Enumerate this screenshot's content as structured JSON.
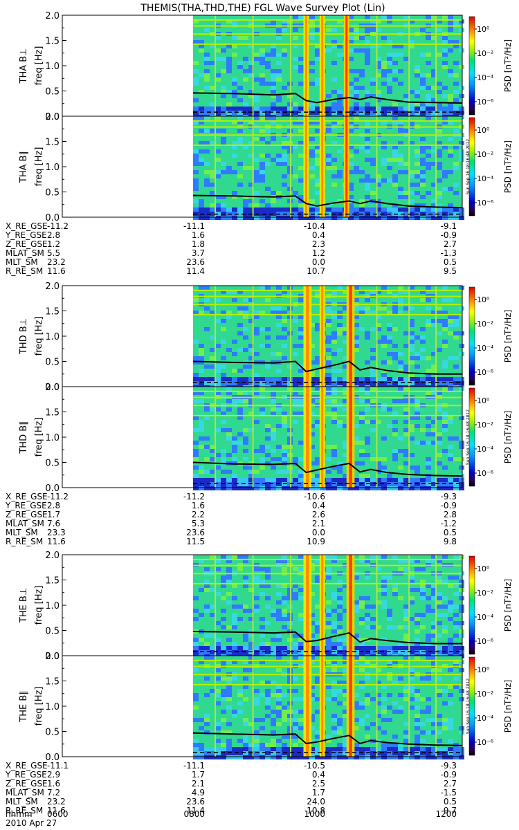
{
  "title": "THEMIS(THA,THD,THE) FGL Wave Survey Plot (Lin)",
  "colorbar": {
    "label": "PSD [nT²/Hz]",
    "ticks": [
      "10⁰",
      "10⁻²",
      "10⁻⁴",
      "10⁻⁶"
    ]
  },
  "stamp": "Sun Sep 16 18:16:48 2012",
  "footer": {
    "hhmm_label": "hhmm",
    "date": "2010 Apr 27",
    "times": [
      "0600",
      "0800",
      "1000",
      "1200"
    ]
  },
  "chart_data": [
    {
      "type": "heatmap",
      "name": "THA B⊥",
      "ylabel": "freq [Hz]",
      "ylim": [
        0,
        2.0
      ],
      "yticks": [
        "0.0",
        "0.5",
        "1.0",
        "1.5",
        "2.0"
      ],
      "x_start": "0600",
      "data_start": "0800",
      "x_end": "1200",
      "bands": [
        0.41,
        0.43,
        0.47,
        0.49,
        0.56,
        0.58
      ],
      "line": [
        [
          0.0,
          0.46
        ],
        [
          0.15,
          0.45
        ],
        [
          0.3,
          0.42
        ],
        [
          0.38,
          0.45
        ],
        [
          0.42,
          0.31
        ],
        [
          0.46,
          0.27
        ],
        [
          0.52,
          0.33
        ],
        [
          0.58,
          0.37
        ],
        [
          0.62,
          0.33
        ],
        [
          0.66,
          0.38
        ],
        [
          0.72,
          0.33
        ],
        [
          0.8,
          0.28
        ],
        [
          0.9,
          0.27
        ],
        [
          1.0,
          0.26
        ]
      ],
      "dash": 0.08
    },
    {
      "type": "heatmap",
      "name": "THA B∥",
      "ylabel": "freq [Hz]",
      "ylim": [
        0,
        2.0
      ],
      "yticks": [
        "0.0",
        "0.5",
        "1.0",
        "1.5",
        "2.0"
      ],
      "x_start": "0600",
      "data_start": "0800",
      "x_end": "1200",
      "bands": [
        0.41,
        0.43,
        0.47,
        0.49,
        0.56,
        0.58
      ],
      "line": [
        [
          0.0,
          0.43
        ],
        [
          0.15,
          0.42
        ],
        [
          0.3,
          0.4
        ],
        [
          0.38,
          0.42
        ],
        [
          0.42,
          0.27
        ],
        [
          0.46,
          0.22
        ],
        [
          0.52,
          0.28
        ],
        [
          0.58,
          0.32
        ],
        [
          0.62,
          0.27
        ],
        [
          0.66,
          0.32
        ],
        [
          0.72,
          0.27
        ],
        [
          0.8,
          0.22
        ],
        [
          0.9,
          0.2
        ],
        [
          1.0,
          0.19
        ]
      ],
      "dash": 0.06
    },
    {
      "type": "heatmap",
      "name": "THD B⊥",
      "ylabel": "freq [Hz]",
      "ylim": [
        0,
        2.0
      ],
      "yticks": [
        "0.0",
        "0.5",
        "1.0",
        "1.5",
        "2.0"
      ],
      "x_start": "0600",
      "data_start": "0800",
      "x_end": "1200",
      "bands": [
        0.41,
        0.44,
        0.47,
        0.49,
        0.57,
        0.6
      ],
      "line": [
        [
          0.0,
          0.5
        ],
        [
          0.15,
          0.48
        ],
        [
          0.3,
          0.47
        ],
        [
          0.38,
          0.5
        ],
        [
          0.42,
          0.3
        ],
        [
          0.46,
          0.35
        ],
        [
          0.52,
          0.42
        ],
        [
          0.58,
          0.5
        ],
        [
          0.62,
          0.33
        ],
        [
          0.66,
          0.38
        ],
        [
          0.72,
          0.32
        ],
        [
          0.8,
          0.27
        ],
        [
          0.9,
          0.25
        ],
        [
          1.0,
          0.25
        ]
      ],
      "dash": 0.08
    },
    {
      "type": "heatmap",
      "name": "THD B∥",
      "ylabel": "freq [Hz]",
      "ylim": [
        0,
        2.0
      ],
      "yticks": [
        "0.0",
        "0.5",
        "1.0",
        "1.5",
        "2.0"
      ],
      "x_start": "0600",
      "data_start": "0800",
      "x_end": "1200",
      "bands": [
        0.41,
        0.44,
        0.47,
        0.49,
        0.57,
        0.6
      ],
      "line": [
        [
          0.0,
          0.5
        ],
        [
          0.15,
          0.47
        ],
        [
          0.3,
          0.46
        ],
        [
          0.38,
          0.48
        ],
        [
          0.42,
          0.3
        ],
        [
          0.46,
          0.35
        ],
        [
          0.52,
          0.42
        ],
        [
          0.58,
          0.48
        ],
        [
          0.62,
          0.31
        ],
        [
          0.66,
          0.36
        ],
        [
          0.72,
          0.3
        ],
        [
          0.8,
          0.26
        ],
        [
          0.9,
          0.24
        ],
        [
          1.0,
          0.23
        ]
      ],
      "dash": 0.08
    },
    {
      "type": "heatmap",
      "name": "THE B⊥",
      "ylabel": "freq [Hz]",
      "ylim": [
        0,
        2.0
      ],
      "yticks": [
        "0.0",
        "0.5",
        "1.0",
        "1.5",
        "2.0"
      ],
      "x_start": "0600",
      "data_start": "0800",
      "x_end": "1200",
      "bands": [
        0.41,
        0.44,
        0.47,
        0.49,
        0.57,
        0.6
      ],
      "line": [
        [
          0.0,
          0.48
        ],
        [
          0.15,
          0.47
        ],
        [
          0.3,
          0.45
        ],
        [
          0.38,
          0.47
        ],
        [
          0.42,
          0.28
        ],
        [
          0.46,
          0.3
        ],
        [
          0.52,
          0.38
        ],
        [
          0.58,
          0.45
        ],
        [
          0.62,
          0.27
        ],
        [
          0.66,
          0.34
        ],
        [
          0.72,
          0.3
        ],
        [
          0.8,
          0.26
        ],
        [
          0.9,
          0.24
        ],
        [
          1.0,
          0.24
        ]
      ],
      "dash": 0.08
    },
    {
      "type": "heatmap",
      "name": "THE B∥",
      "ylabel": "freq [Hz]",
      "ylim": [
        0,
        2.0
      ],
      "yticks": [
        "0.0",
        "0.5",
        "1.0",
        "1.5",
        "2.0"
      ],
      "x_start": "0600",
      "data_start": "0800",
      "x_end": "1200",
      "bands": [
        0.41,
        0.44,
        0.47,
        0.49,
        0.57,
        0.6
      ],
      "line": [
        [
          0.0,
          0.47
        ],
        [
          0.15,
          0.45
        ],
        [
          0.3,
          0.43
        ],
        [
          0.38,
          0.45
        ],
        [
          0.42,
          0.26
        ],
        [
          0.46,
          0.29
        ],
        [
          0.52,
          0.36
        ],
        [
          0.58,
          0.42
        ],
        [
          0.62,
          0.26
        ],
        [
          0.66,
          0.32
        ],
        [
          0.72,
          0.28
        ],
        [
          0.8,
          0.25
        ],
        [
          0.9,
          0.23
        ],
        [
          1.0,
          0.22
        ]
      ],
      "dash": 0.08
    }
  ],
  "ephemeris": [
    {
      "rows": [
        {
          "label": "X_RE_GSE",
          "values": [
            "-11.2",
            "-11.1",
            "-10.4",
            "-9.1"
          ]
        },
        {
          "label": "Y_RE_GSE",
          "values": [
            "2.8",
            "1.6",
            "0.4",
            "-0.9"
          ]
        },
        {
          "label": "Z_RE_GSE",
          "values": [
            "1.2",
            "1.8",
            "2.3",
            "2.7"
          ]
        },
        {
          "label": "MLAT_SM",
          "values": [
            "5.5",
            "3.7",
            "1.2",
            "-1.3"
          ]
        },
        {
          "label": "MLT_SM",
          "values": [
            "23.2",
            "23.6",
            "0.0",
            "0.5"
          ]
        },
        {
          "label": "R_RE_SM",
          "values": [
            "11.6",
            "11.4",
            "10.7",
            "9.5"
          ]
        }
      ]
    },
    {
      "rows": [
        {
          "label": "X_RE_GSE",
          "values": [
            "-11.2",
            "-11.2",
            "-10.6",
            "-9.3"
          ]
        },
        {
          "label": "Y_RE_GSE",
          "values": [
            "2.8",
            "1.6",
            "0.4",
            "-0.9"
          ]
        },
        {
          "label": "Z_RE_GSE",
          "values": [
            "1.7",
            "2.2",
            "2.6",
            "2.8"
          ]
        },
        {
          "label": "MLAT_SM",
          "values": [
            "7.6",
            "5.3",
            "2.1",
            "-1.2"
          ]
        },
        {
          "label": "MLT_SM",
          "values": [
            "23.3",
            "23.6",
            "0.0",
            "0.5"
          ]
        },
        {
          "label": "R_RE_SM",
          "values": [
            "11.6",
            "11.5",
            "10.9",
            "9.8"
          ]
        }
      ]
    },
    {
      "rows": [
        {
          "label": "X_RE_GSE",
          "values": [
            "-11.1",
            "-11.1",
            "-10.5",
            "-9.3"
          ]
        },
        {
          "label": "Y_RE_GSE",
          "values": [
            "2.9",
            "1.7",
            "0.4",
            "-0.9"
          ]
        },
        {
          "label": "Z_RE_GSE",
          "values": [
            "1.6",
            "2.1",
            "2.5",
            "2.7"
          ]
        },
        {
          "label": "MLAT_SM",
          "values": [
            "7.2",
            "4.9",
            "1.7",
            "-1.5"
          ]
        },
        {
          "label": "MLT_SM",
          "values": [
            "23.2",
            "23.6",
            "24.0",
            "0.5"
          ]
        },
        {
          "label": "R_RE_SM",
          "values": [
            "11.6",
            "11.4",
            "10.8",
            "9.7"
          ]
        }
      ]
    }
  ]
}
